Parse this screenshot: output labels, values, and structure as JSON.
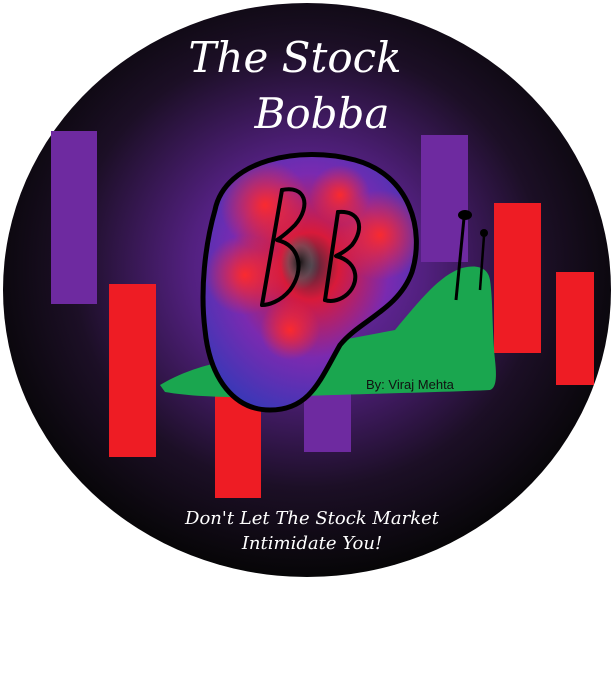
{
  "title": {
    "line1": "The Stock",
    "line2": "Bobba"
  },
  "logo_letters": "BB",
  "byline": "By: Viraj Mehta",
  "tagline": {
    "line1": "Don't Let The Stock Market",
    "line2": "Intimidate You!"
  },
  "colors": {
    "background_outer": "#0a0a0a",
    "glow": "#6a2aa6",
    "purple_candle": "#6e2aa0",
    "red_candle": "#ee1c24",
    "snail_body": "#1aa64f",
    "shell_outline": "#000000",
    "text": "#ffffff"
  },
  "icons": [
    "snail-icon",
    "candlestick-icon"
  ]
}
